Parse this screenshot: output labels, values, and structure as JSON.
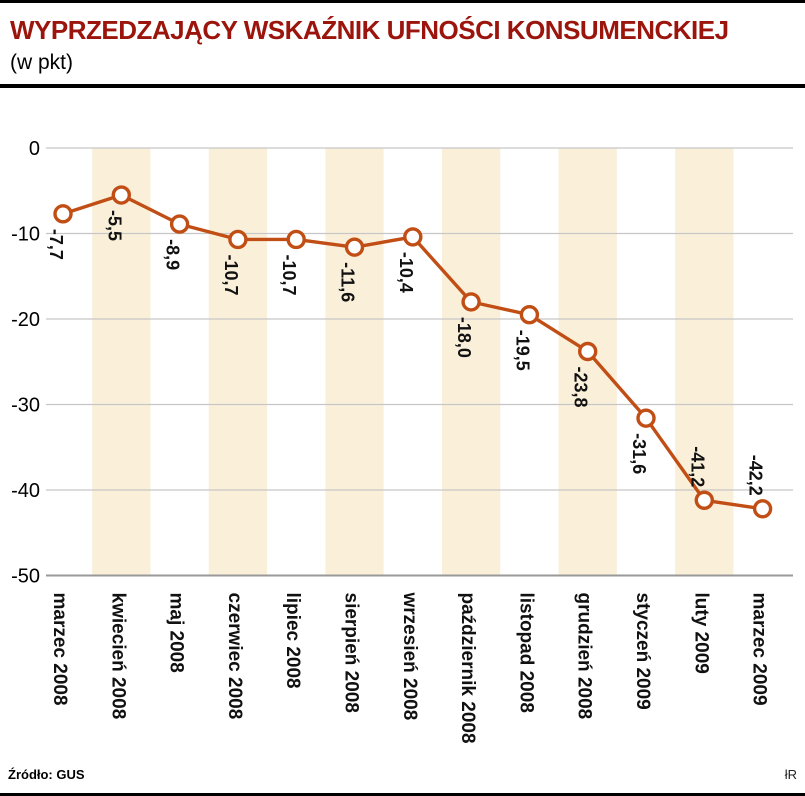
{
  "header": {
    "title": "WYPRZEDZAJĄCY WSKAŹNIK UFNOŚCI KONSUMENCKIEJ",
    "subtitle": "(w pkt)"
  },
  "footer": {
    "source": "Źródło: GUS",
    "credit": "łR"
  },
  "colors": {
    "title": "#9b150d",
    "line": "#c14e14",
    "marker_fill": "#ffffff",
    "stripe": "#faf0da",
    "grid": "#c6c6c6",
    "axis": "#999999",
    "text": "#111111"
  },
  "chart_data": {
    "type": "line",
    "title": "WYPRZEDZAJĄCY WSKAŹNIK UFNOŚCI KONSUMENCKIEJ",
    "subtitle": "(w pkt)",
    "categories": [
      "marzec 2008",
      "kwiecień 2008",
      "maj 2008",
      "czerwiec 2008",
      "lipiec 2008",
      "sierpień 2008",
      "wrzesień 2008",
      "październik 2008",
      "listopad 2008",
      "grudzień 2008",
      "styczeń 2009",
      "luty 2009",
      "marzec 2009"
    ],
    "values": [
      -7.7,
      -5.5,
      -8.9,
      -10.7,
      -10.7,
      -11.6,
      -10.4,
      -18.0,
      -19.5,
      -23.8,
      -31.6,
      -41.2,
      -42.2
    ],
    "value_labels": [
      "-7,7",
      "-5,5",
      "-8,9",
      "-10,7",
      "-10,7",
      "-11,6",
      "-10,4",
      "-18,0",
      "-19,5",
      "-23,8",
      "-31,6",
      "-41,2",
      "-42,2"
    ],
    "xlabel": "",
    "ylabel": "",
    "ylim": [
      -50,
      0
    ],
    "yticks": [
      0,
      -10,
      -20,
      -30,
      -40,
      -50
    ],
    "ytick_labels": [
      "0",
      "-10",
      "-20",
      "-30",
      "-40",
      "-50"
    ],
    "grid": "horizontal",
    "legend": "none",
    "marker": "open-circle",
    "background_stripes": "vertical cream bands behind every second category starting with kwiecień 2008",
    "label_rotation": "vertical"
  }
}
